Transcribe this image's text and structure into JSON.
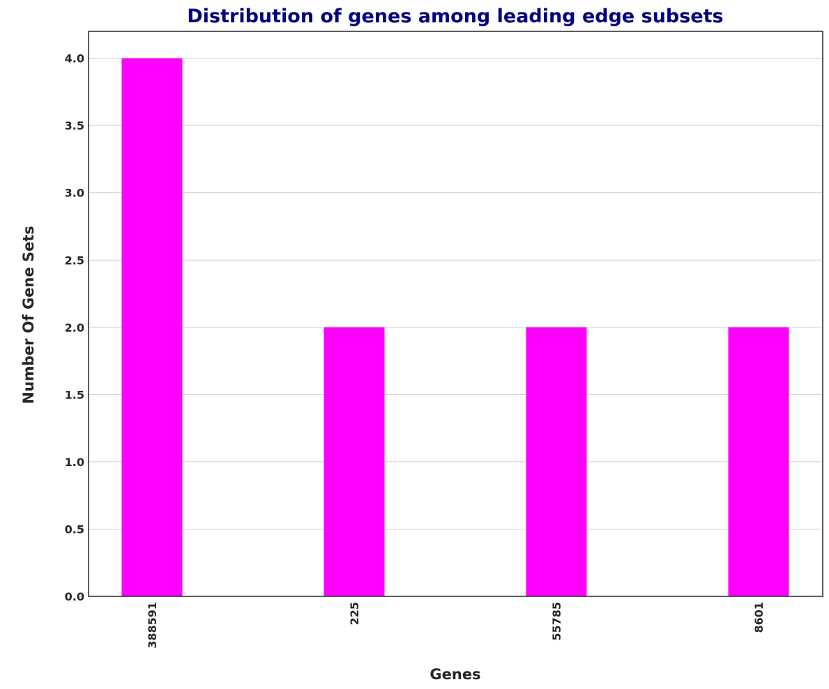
{
  "chart_data": {
    "type": "bar",
    "title": "Distribution of genes among leading edge subsets",
    "xlabel": "Genes",
    "ylabel": "Number Of Gene Sets",
    "categories": [
      "388591",
      "225",
      "55785",
      "8601"
    ],
    "values": [
      4,
      2,
      2,
      2
    ],
    "ylim": [
      0,
      4.2
    ],
    "yticks": [
      0.0,
      0.5,
      1.0,
      1.5,
      2.0,
      2.5,
      3.0,
      3.5,
      4.0
    ],
    "ytick_labels": [
      "0.0",
      "0.5",
      "1.0",
      "1.5",
      "2.0",
      "2.5",
      "3.0",
      "3.5",
      "4.0"
    ],
    "grid": "horizontal",
    "legend": "none",
    "colors": {
      "bar": "#ff00ff",
      "title": "#000080",
      "grid": "#cccccc",
      "axes": "#333333"
    }
  }
}
